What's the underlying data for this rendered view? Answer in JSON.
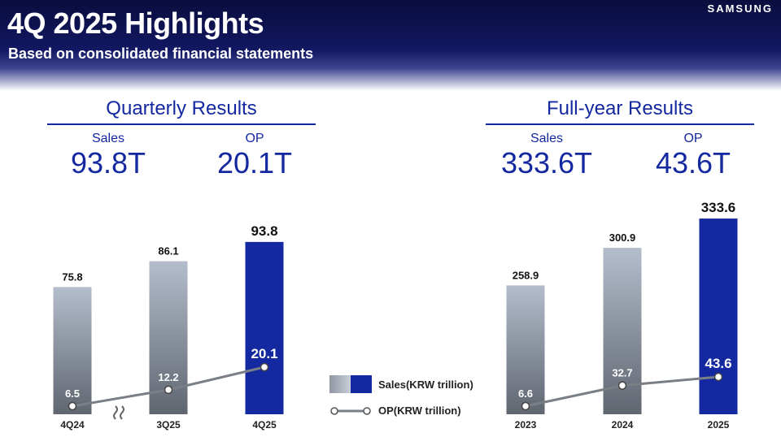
{
  "header": {
    "title": "4Q 2025 Highlights",
    "subtitle": "Based on consolidated financial statements",
    "brand": "SAMSUNG"
  },
  "quarterly": {
    "title": "Quarterly Results",
    "sales_label": "Sales",
    "sales_value": "93.8T",
    "op_label": "OP",
    "op_value": "20.1T"
  },
  "fullyear": {
    "title": "Full-year Results",
    "sales_label": "Sales",
    "sales_value": "333.6T",
    "op_label": "OP",
    "op_value": "43.6T"
  },
  "legend": {
    "sales": "Sales(KRW trillion)",
    "op": "OP(KRW trillion)"
  },
  "colors": {
    "highlight": "#1428a0",
    "bar_gray_top": "#b4bdcc",
    "bar_gray_bottom": "#5f6670",
    "op_line": "#7a7f86"
  },
  "chart_data": [
    {
      "type": "bar",
      "categories": [
        "4Q24",
        "3Q25",
        "4Q25"
      ],
      "series": [
        {
          "name": "Sales(KRW trillion)",
          "values": [
            75.8,
            86.1,
            93.8
          ]
        },
        {
          "name": "OP(KRW trillion)",
          "type": "line",
          "values": [
            6.5,
            12.2,
            20.1
          ]
        }
      ],
      "labels": {
        "sales": [
          "75.8",
          "86.1",
          "93.8"
        ],
        "op": [
          "6.5",
          "12.2",
          "20.1"
        ]
      },
      "highlight_index": 2,
      "axis_break_between": [
        0,
        1
      ],
      "legend": "center"
    },
    {
      "type": "bar",
      "categories": [
        "2023",
        "2024",
        "2025"
      ],
      "series": [
        {
          "name": "Sales(KRW trillion)",
          "values": [
            258.9,
            300.9,
            333.6
          ]
        },
        {
          "name": "OP(KRW trillion)",
          "type": "line",
          "values": [
            6.6,
            32.7,
            43.6
          ]
        }
      ],
      "labels": {
        "sales": [
          "258.9",
          "300.9",
          "333.6"
        ],
        "op": [
          "6.6",
          "32.7",
          "43.6"
        ]
      },
      "highlight_index": 2,
      "legend": "center"
    }
  ]
}
